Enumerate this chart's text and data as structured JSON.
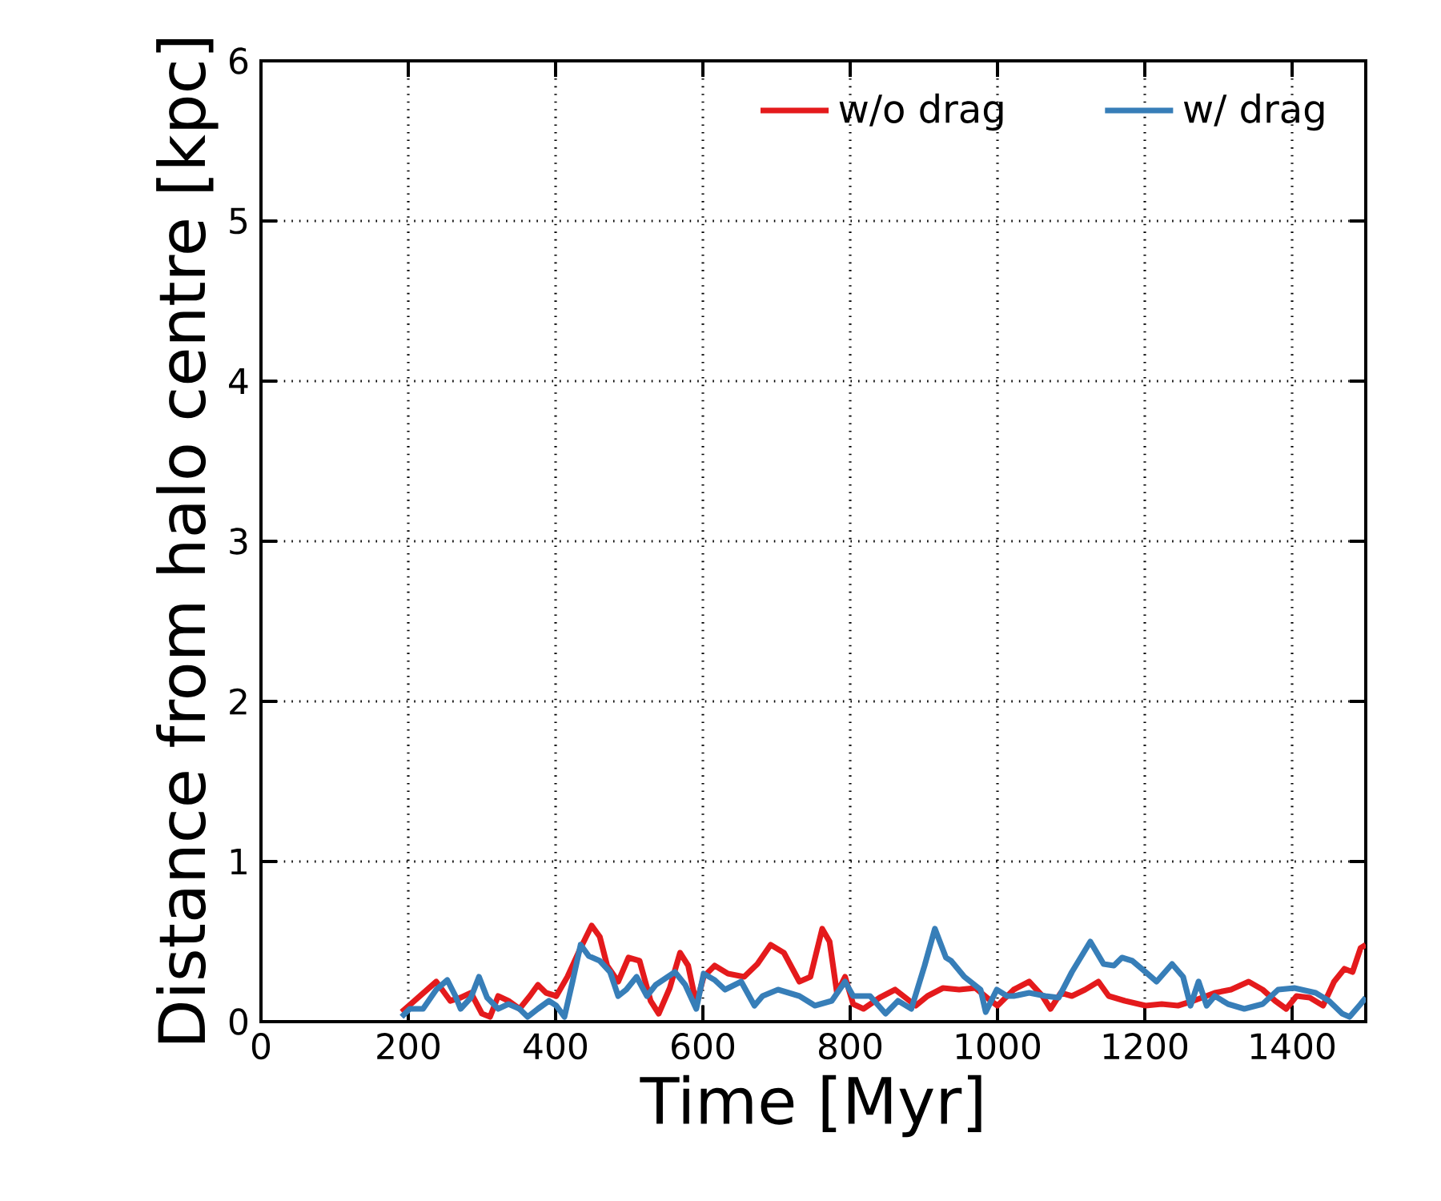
{
  "chart_data": {
    "type": "line",
    "xlabel": "Time [Myr]",
    "ylabel": "Distance from halo centre [kpc]",
    "xlim": [
      0,
      1500
    ],
    "ylim": [
      0,
      6
    ],
    "xticks": [
      0,
      200,
      400,
      600,
      800,
      1000,
      1200,
      1400
    ],
    "yticks": [
      0,
      1,
      2,
      3,
      4,
      5,
      6
    ],
    "grid": true,
    "legend": "top right",
    "line_style": "solid",
    "marker": "none",
    "series": [
      {
        "name": "w/o drag",
        "color": "#e41a1c",
        "x": [
          191,
          238,
          257,
          271,
          285,
          300,
          311,
          322,
          336,
          351,
          365,
          376,
          387,
          401,
          416,
          434,
          449,
          460,
          470,
          485,
          499,
          514,
          529,
          540,
          555,
          569,
          580,
          591,
          601,
          616,
          634,
          656,
          674,
          692,
          710,
          731,
          746,
          762,
          772,
          782,
          793,
          804,
          818,
          840,
          861,
          889,
          905,
          926,
          948,
          970,
          991,
          1000,
          1022,
          1043,
          1061,
          1072,
          1086,
          1101,
          1119,
          1137,
          1151,
          1173,
          1201,
          1223,
          1245,
          1266,
          1295,
          1317,
          1341,
          1360,
          1377,
          1392,
          1406,
          1424,
          1442,
          1457,
          1471,
          1482,
          1493,
          1500
        ],
        "values": [
          0.06,
          0.25,
          0.13,
          0.15,
          0.18,
          0.05,
          0.03,
          0.16,
          0.13,
          0.08,
          0.16,
          0.23,
          0.18,
          0.16,
          0.28,
          0.46,
          0.6,
          0.53,
          0.35,
          0.25,
          0.4,
          0.38,
          0.13,
          0.05,
          0.21,
          0.43,
          0.35,
          0.11,
          0.28,
          0.35,
          0.3,
          0.28,
          0.36,
          0.48,
          0.43,
          0.25,
          0.28,
          0.58,
          0.5,
          0.18,
          0.28,
          0.11,
          0.08,
          0.15,
          0.2,
          0.1,
          0.16,
          0.21,
          0.2,
          0.21,
          0.13,
          0.1,
          0.2,
          0.25,
          0.16,
          0.08,
          0.18,
          0.16,
          0.2,
          0.25,
          0.16,
          0.13,
          0.1,
          0.11,
          0.1,
          0.13,
          0.18,
          0.2,
          0.25,
          0.2,
          0.13,
          0.08,
          0.16,
          0.15,
          0.1,
          0.25,
          0.33,
          0.31,
          0.46,
          0.48
        ]
      },
      {
        "name": "w/ drag",
        "color": "#377eb8",
        "x": [
          191,
          202,
          220,
          238,
          253,
          264,
          271,
          285,
          296,
          307,
          322,
          336,
          351,
          362,
          376,
          391,
          401,
          412,
          423,
          434,
          445,
          460,
          474,
          485,
          496,
          510,
          524,
          536,
          562,
          576,
          591,
          601,
          616,
          630,
          652,
          670,
          681,
          702,
          731,
          752,
          775,
          793,
          804,
          827,
          848,
          865,
          883,
          901,
          915,
          930,
          937,
          955,
          977,
          984,
          999,
          1013,
          1022,
          1043,
          1065,
          1083,
          1101,
          1126,
          1144,
          1158,
          1169,
          1183,
          1201,
          1216,
          1237,
          1252,
          1262,
          1273,
          1284,
          1295,
          1313,
          1335,
          1360,
          1381,
          1403,
          1432,
          1450,
          1468,
          1478,
          1493,
          1500
        ],
        "values": [
          0.03,
          0.08,
          0.08,
          0.2,
          0.26,
          0.16,
          0.08,
          0.15,
          0.28,
          0.15,
          0.08,
          0.11,
          0.08,
          0.03,
          0.08,
          0.13,
          0.1,
          0.03,
          0.25,
          0.48,
          0.41,
          0.38,
          0.31,
          0.16,
          0.2,
          0.28,
          0.16,
          0.23,
          0.31,
          0.23,
          0.08,
          0.3,
          0.26,
          0.2,
          0.25,
          0.1,
          0.16,
          0.2,
          0.16,
          0.1,
          0.13,
          0.25,
          0.16,
          0.16,
          0.05,
          0.13,
          0.08,
          0.35,
          0.58,
          0.4,
          0.38,
          0.28,
          0.2,
          0.06,
          0.2,
          0.16,
          0.16,
          0.18,
          0.16,
          0.15,
          0.31,
          0.5,
          0.36,
          0.35,
          0.4,
          0.38,
          0.31,
          0.25,
          0.36,
          0.28,
          0.1,
          0.25,
          0.1,
          0.16,
          0.11,
          0.08,
          0.11,
          0.2,
          0.21,
          0.18,
          0.13,
          0.05,
          0.03,
          0.11,
          0.15
        ]
      }
    ]
  }
}
